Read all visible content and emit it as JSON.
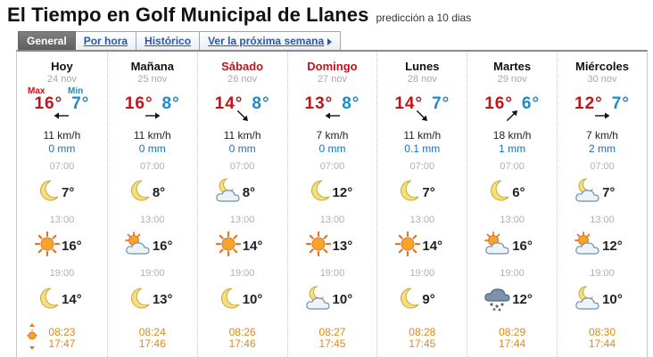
{
  "header": {
    "title": "El Tiempo en Golf Municipal de Llanes",
    "subtitle": "predicción a 10 dias"
  },
  "tabs": [
    {
      "label": "General",
      "active": true
    },
    {
      "label": "Por hora",
      "active": false
    },
    {
      "label": "Histórico",
      "active": false
    },
    {
      "label": "Ver la próxima semana",
      "active": false
    }
  ],
  "labels": {
    "max": "Max",
    "min": "Min"
  },
  "colors": {
    "max": "#c0141c",
    "min": "#1d8bc4",
    "rain": "#1d6fb8",
    "sun": "#e08a10",
    "weekend": "#c0141c"
  },
  "days": [
    {
      "name": "Hoy",
      "date": "24 nov",
      "weekend": false,
      "max": "16°",
      "min": "7°",
      "wind_dir": "W",
      "wind": "11 km/h",
      "rain": "0 mm",
      "slots": [
        {
          "hour": "07:00",
          "temp": "7°",
          "icon": "moon-icon"
        },
        {
          "hour": "13:00",
          "temp": "16°",
          "icon": "sun-icon"
        },
        {
          "hour": "19:00",
          "temp": "14°",
          "icon": "moon-icon"
        }
      ],
      "sunrise": "08:23",
      "sunset": "17:47"
    },
    {
      "name": "Mañana",
      "date": "25 nov",
      "weekend": false,
      "max": "16°",
      "min": "8°",
      "wind_dir": "E",
      "wind": "11 km/h",
      "rain": "0 mm",
      "slots": [
        {
          "hour": "07:00",
          "temp": "8°",
          "icon": "moon-icon"
        },
        {
          "hour": "13:00",
          "temp": "16°",
          "icon": "sun-cloud-icon"
        },
        {
          "hour": "19:00",
          "temp": "13°",
          "icon": "moon-icon"
        }
      ],
      "sunrise": "08:24",
      "sunset": "17:46"
    },
    {
      "name": "Sábado",
      "date": "26 nov",
      "weekend": true,
      "max": "14°",
      "min": "8°",
      "wind_dir": "SE",
      "wind": "11 km/h",
      "rain": "0 mm",
      "slots": [
        {
          "hour": "07:00",
          "temp": "8°",
          "icon": "moon-cloud-icon"
        },
        {
          "hour": "13:00",
          "temp": "14°",
          "icon": "sun-icon"
        },
        {
          "hour": "19:00",
          "temp": "10°",
          "icon": "moon-icon"
        }
      ],
      "sunrise": "08:26",
      "sunset": "17:46"
    },
    {
      "name": "Domingo",
      "date": "27 nov",
      "weekend": true,
      "max": "13°",
      "min": "8°",
      "wind_dir": "W",
      "wind": "7 km/h",
      "rain": "0 mm",
      "slots": [
        {
          "hour": "07:00",
          "temp": "12°",
          "icon": "moon-icon"
        },
        {
          "hour": "13:00",
          "temp": "13°",
          "icon": "sun-icon"
        },
        {
          "hour": "19:00",
          "temp": "10°",
          "icon": "moon-cloud-icon"
        }
      ],
      "sunrise": "08:27",
      "sunset": "17:45"
    },
    {
      "name": "Lunes",
      "date": "28 nov",
      "weekend": false,
      "max": "14°",
      "min": "7°",
      "wind_dir": "SE",
      "wind": "11 km/h",
      "rain": "0.1 mm",
      "slots": [
        {
          "hour": "07:00",
          "temp": "7°",
          "icon": "moon-icon"
        },
        {
          "hour": "13:00",
          "temp": "14°",
          "icon": "sun-icon"
        },
        {
          "hour": "19:00",
          "temp": "9°",
          "icon": "moon-icon"
        }
      ],
      "sunrise": "08:28",
      "sunset": "17:45"
    },
    {
      "name": "Martes",
      "date": "29 nov",
      "weekend": false,
      "max": "16°",
      "min": "6°",
      "wind_dir": "NE",
      "wind": "18 km/h",
      "rain": "1 mm",
      "slots": [
        {
          "hour": "07:00",
          "temp": "6°",
          "icon": "moon-icon"
        },
        {
          "hour": "13:00",
          "temp": "16°",
          "icon": "sun-cloud-icon"
        },
        {
          "hour": "19:00",
          "temp": "12°",
          "icon": "rain-cloud-icon"
        }
      ],
      "sunrise": "08:29",
      "sunset": "17:44"
    },
    {
      "name": "Miércoles",
      "date": "30 nov",
      "weekend": false,
      "max": "12°",
      "min": "7°",
      "wind_dir": "E",
      "wind": "7 km/h",
      "rain": "2 mm",
      "slots": [
        {
          "hour": "07:00",
          "temp": "7°",
          "icon": "moon-cloud-icon"
        },
        {
          "hour": "13:00",
          "temp": "12°",
          "icon": "sun-cloud-icon"
        },
        {
          "hour": "19:00",
          "temp": "10°",
          "icon": "moon-cloud-icon"
        }
      ],
      "sunrise": "08:30",
      "sunset": "17:44"
    }
  ]
}
